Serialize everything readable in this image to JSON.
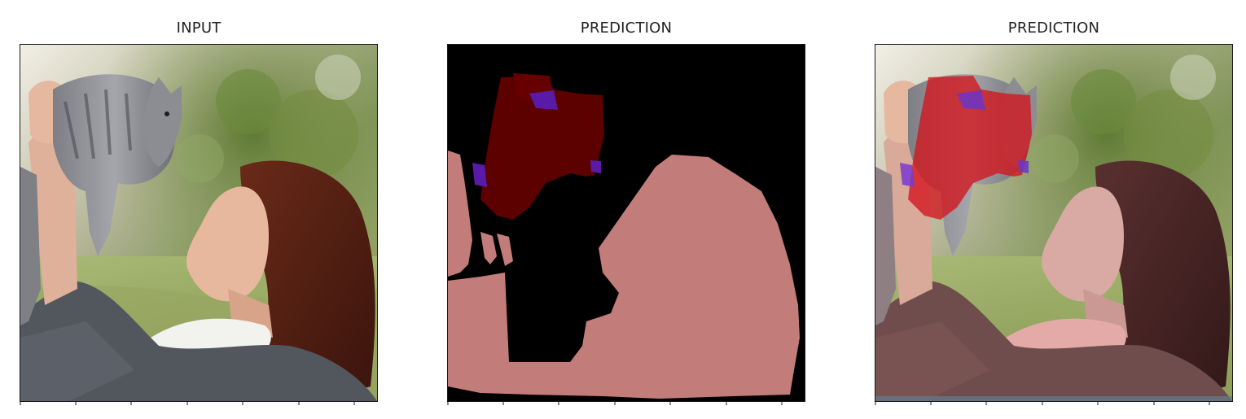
{
  "figure": {
    "panels": [
      {
        "id": "input",
        "title": "INPUT"
      },
      {
        "id": "prediction-mask",
        "title": "PREDICTION"
      },
      {
        "id": "prediction-overlay",
        "title": "PREDICTION"
      }
    ]
  },
  "colors": {
    "mask_background": "#000000",
    "person_class": "#c27c79",
    "cat_class": "#5c0000",
    "cat_secondary_class": "#5a1aa8",
    "overlay_cat": "#d4151c",
    "overlay_person_tint": "#c28a86"
  }
}
